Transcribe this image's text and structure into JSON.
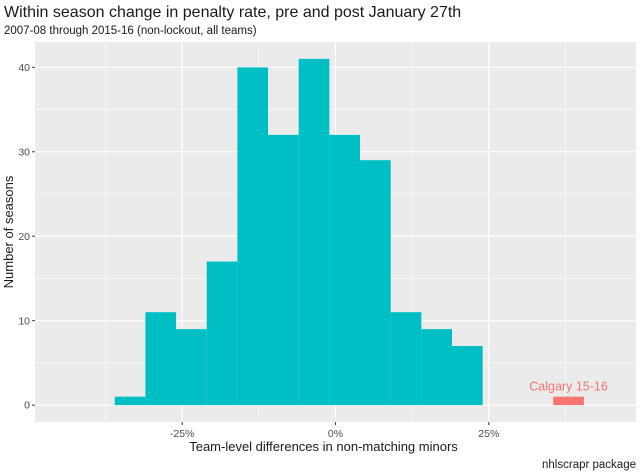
{
  "chart_data": {
    "type": "bar",
    "title": "Within season change in penalty rate, pre and post January 27th",
    "subtitle": "2007-08 through 2015-16 (non-lockout, all teams)",
    "xlabel": "Team-level differences in non-matching minors",
    "ylabel": "Number of seasons",
    "caption": "nhlscrapr package",
    "x_ticks": [
      {
        "value": -0.25,
        "label": "-25%"
      },
      {
        "value": 0,
        "label": "0%"
      },
      {
        "value": 0.25,
        "label": "25%"
      }
    ],
    "y_ticks": [
      0,
      10,
      20,
      30,
      40
    ],
    "xlim": [
      -0.49,
      0.49
    ],
    "ylim": [
      -2,
      43
    ],
    "bin_width": 0.05,
    "bins": [
      {
        "x0": -0.36,
        "x1": -0.31,
        "count": 1
      },
      {
        "x0": -0.31,
        "x1": -0.26,
        "count": 11
      },
      {
        "x0": -0.26,
        "x1": -0.21,
        "count": 9
      },
      {
        "x0": -0.21,
        "x1": -0.16,
        "count": 17
      },
      {
        "x0": -0.16,
        "x1": -0.11,
        "count": 40
      },
      {
        "x0": -0.11,
        "x1": -0.06,
        "count": 32
      },
      {
        "x0": -0.06,
        "x1": -0.01,
        "count": 41
      },
      {
        "x0": -0.01,
        "x1": 0.04,
        "count": 32
      },
      {
        "x0": 0.04,
        "x1": 0.09,
        "count": 29
      },
      {
        "x0": 0.09,
        "x1": 0.14,
        "count": 11
      },
      {
        "x0": 0.14,
        "x1": 0.19,
        "count": 9
      },
      {
        "x0": 0.19,
        "x1": 0.24,
        "count": 7
      }
    ],
    "highlight": {
      "label": "Calgary 15-16",
      "x0": 0.355,
      "x1": 0.405,
      "count": 1
    },
    "colors": {
      "bars": "#00BFC4",
      "highlight": "#F8766D",
      "panel": "#EBEBEB",
      "grid": "#FFFFFF"
    },
    "grid": true,
    "legend": "none"
  }
}
